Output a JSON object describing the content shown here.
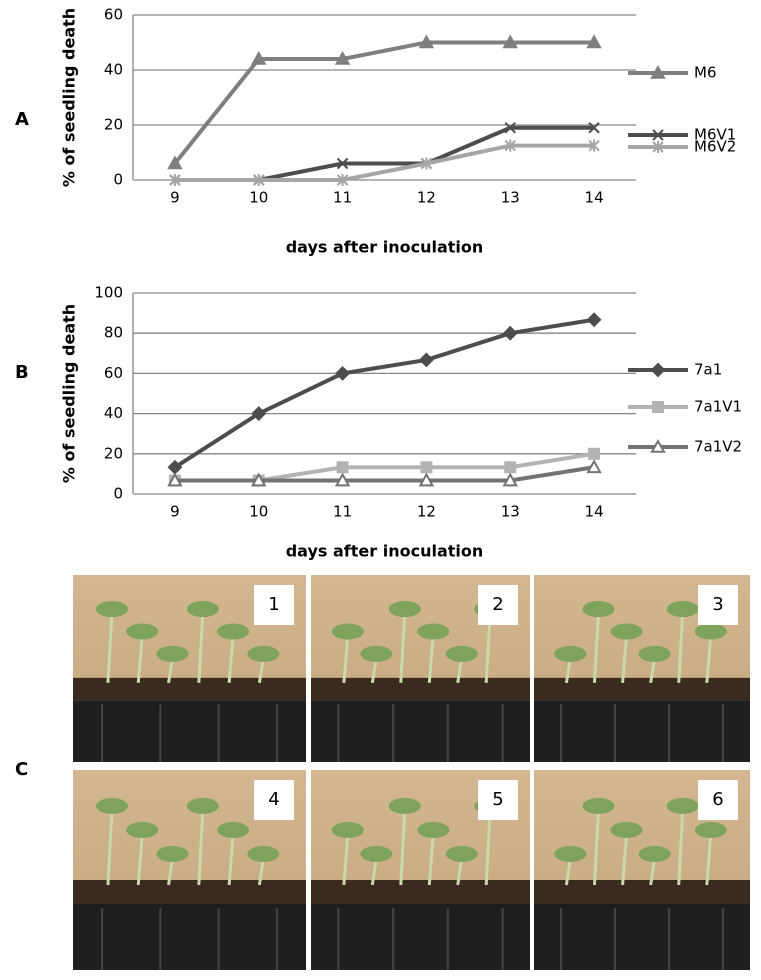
{
  "chart_data": [
    {
      "type": "line",
      "x_label": "days after inoculation",
      "y_label": "% of seedling death",
      "categories": [
        "9",
        "10",
        "11",
        "12",
        "13",
        "14"
      ],
      "ylim": [
        0,
        60
      ],
      "yticks": [
        0,
        20,
        40,
        60
      ],
      "grid": true,
      "legend": "right",
      "series": [
        {
          "name": "M6",
          "color": "#7f7f7f",
          "marker": "triangle",
          "values": [
            6,
            44,
            44,
            50,
            50,
            50
          ]
        },
        {
          "name": "M6V1",
          "color": "#4d4d4d",
          "marker": "cross",
          "values": [
            0,
            0,
            6,
            6,
            19,
            19
          ]
        },
        {
          "name": "M6V2",
          "color": "#a6a6a6",
          "marker": "asterisk",
          "values": [
            0,
            0,
            0,
            6,
            12.5,
            12.5
          ]
        }
      ]
    },
    {
      "type": "line",
      "x_label": "days after inoculation",
      "y_label": "% of seedling death",
      "categories": [
        "9",
        "10",
        "11",
        "12",
        "13",
        "14"
      ],
      "ylim": [
        0,
        100
      ],
      "yticks": [
        0,
        20,
        40,
        60,
        80,
        100
      ],
      "grid": true,
      "legend": "right",
      "series": [
        {
          "name": "7a1",
          "color": "#4d4d4d",
          "marker": "diamond",
          "values": [
            13.3,
            40,
            60,
            66.7,
            80,
            86.7
          ]
        },
        {
          "name": "7a1V1",
          "color": "#b3b3b3",
          "marker": "square",
          "values": [
            6.7,
            6.7,
            13.3,
            13.3,
            13.3,
            20
          ]
        },
        {
          "name": "7a1V2",
          "color": "#737373",
          "marker": "triangle-open",
          "values": [
            6.7,
            6.7,
            6.7,
            6.7,
            6.7,
            13.3
          ]
        }
      ]
    }
  ],
  "panels": {
    "labels": [
      "A",
      "B",
      "C"
    ],
    "photos": [
      "1",
      "2",
      "3",
      "4",
      "5",
      "6"
    ]
  }
}
